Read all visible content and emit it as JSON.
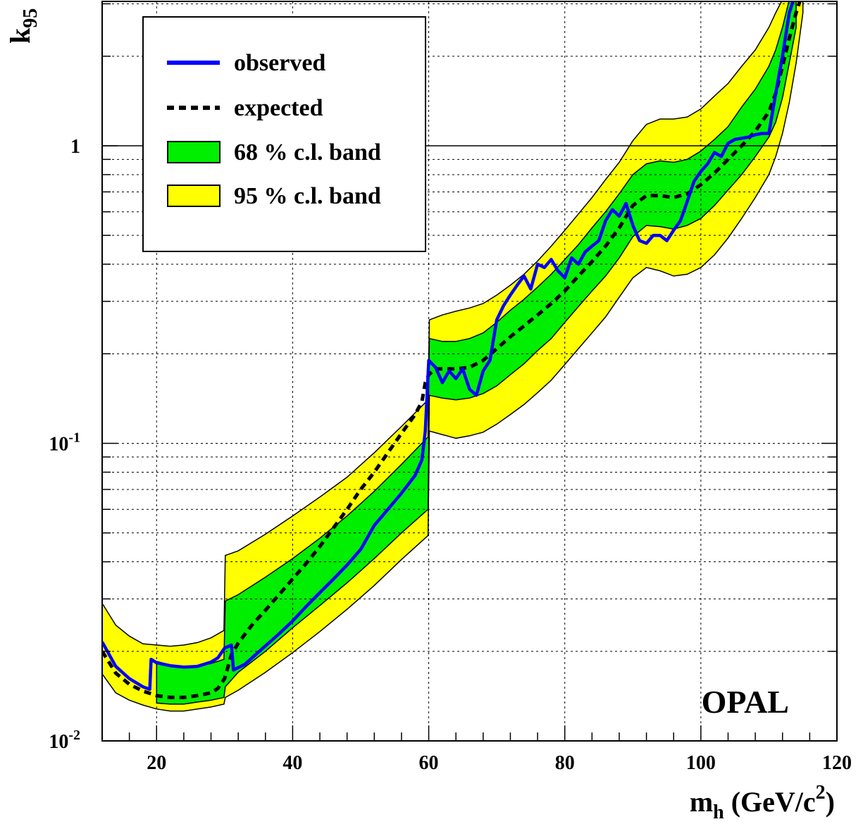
{
  "chart_data": {
    "type": "line",
    "xlabel": "m",
    "xlabel_sub": "h",
    "xlabel_units": " (GeV/c",
    "xlabel_units_sup": "2",
    "xlabel_units_close": ")",
    "ylabel": "k",
    "ylabel_sub": "95",
    "experiment_label": "OPAL",
    "x_scale": "linear",
    "y_scale": "log",
    "xlim": [
      12,
      120
    ],
    "ylim": [
      0.01,
      3.3
    ],
    "x_ticks": [
      20,
      40,
      60,
      80,
      100,
      120
    ],
    "x_tick_labels": [
      "20",
      "40",
      "60",
      "80",
      "100",
      "120"
    ],
    "y_tick_labels": [
      {
        "value": 0.01,
        "base": "10",
        "exp": "-2"
      },
      {
        "value": 0.1,
        "base": "10",
        "exp": "-1"
      },
      {
        "value": 1,
        "base": "1",
        "exp": ""
      }
    ],
    "grid": true,
    "reference_line": 1,
    "legend_position": "top-left",
    "legend": [
      {
        "label": "observed",
        "style": "line",
        "color": "#0000ff"
      },
      {
        "label": "expected",
        "style": "dashed",
        "color": "#000000"
      },
      {
        "label": "68 % c.l. band",
        "style": "box",
        "color": "#00ee00"
      },
      {
        "label": "95 % c.l. band",
        "style": "box",
        "color": "#ffff00"
      }
    ],
    "series": [
      {
        "name": "observed",
        "color": "#0000ff",
        "x": [
          12,
          14,
          16,
          18,
          19,
          19.2,
          20,
          22,
          24,
          26,
          28,
          29,
          30,
          31,
          31.3,
          33,
          35,
          38,
          40,
          42,
          44,
          46,
          48,
          50,
          52,
          54,
          56,
          58,
          59,
          59.5,
          60,
          61,
          62,
          63,
          64,
          65,
          66,
          67,
          68,
          69,
          70,
          71,
          72,
          73,
          74,
          75,
          76,
          77,
          78,
          79,
          80,
          81,
          82,
          83,
          84,
          85,
          86,
          87,
          88,
          89,
          90,
          91,
          92,
          93,
          94,
          95,
          96,
          97,
          98,
          99,
          100,
          101,
          102,
          103,
          104,
          105,
          106,
          107,
          108,
          109,
          110,
          111,
          112,
          113,
          114
        ],
        "y": [
          0.0215,
          0.0178,
          0.0162,
          0.0152,
          0.0149,
          0.0188,
          0.0183,
          0.0179,
          0.0177,
          0.0178,
          0.0184,
          0.019,
          0.0205,
          0.021,
          0.0173,
          0.0181,
          0.0199,
          0.0229,
          0.0253,
          0.0283,
          0.0315,
          0.035,
          0.039,
          0.044,
          0.053,
          0.06,
          0.068,
          0.078,
          0.088,
          0.11,
          0.19,
          0.18,
          0.16,
          0.175,
          0.165,
          0.178,
          0.152,
          0.145,
          0.175,
          0.19,
          0.26,
          0.29,
          0.315,
          0.34,
          0.365,
          0.33,
          0.4,
          0.39,
          0.415,
          0.38,
          0.36,
          0.42,
          0.4,
          0.44,
          0.46,
          0.48,
          0.56,
          0.61,
          0.58,
          0.64,
          0.54,
          0.48,
          0.47,
          0.5,
          0.5,
          0.48,
          0.52,
          0.56,
          0.65,
          0.76,
          0.82,
          0.87,
          0.95,
          0.92,
          1.02,
          1.05,
          1.06,
          1.07,
          1.09,
          1.1,
          1.1,
          1.5,
          2.0,
          2.8,
          3.3
        ]
      },
      {
        "name": "expected",
        "color": "#000000",
        "x": [
          12,
          14,
          16,
          18,
          20,
          22,
          24,
          26,
          28,
          29,
          30,
          31,
          32,
          34,
          36,
          38,
          40,
          42,
          44,
          46,
          48,
          50,
          52,
          54,
          56,
          58,
          59,
          59.5,
          60,
          61,
          62,
          64,
          66,
          68,
          70,
          72,
          74,
          76,
          78,
          80,
          82,
          84,
          86,
          88,
          90,
          92,
          94,
          96,
          98,
          100,
          102,
          104,
          106,
          108,
          110,
          111,
          112,
          113,
          114,
          115
        ],
        "y": [
          0.02,
          0.0169,
          0.0155,
          0.0147,
          0.0142,
          0.014,
          0.014,
          0.0142,
          0.0145,
          0.015,
          0.0162,
          0.0195,
          0.0213,
          0.0245,
          0.0275,
          0.031,
          0.035,
          0.0395,
          0.045,
          0.052,
          0.06,
          0.07,
          0.08,
          0.093,
          0.108,
          0.125,
          0.138,
          0.16,
          0.17,
          0.178,
          0.178,
          0.178,
          0.18,
          0.19,
          0.208,
          0.228,
          0.248,
          0.27,
          0.295,
          0.325,
          0.365,
          0.408,
          0.46,
          0.53,
          0.63,
          0.68,
          0.68,
          0.67,
          0.69,
          0.74,
          0.81,
          0.9,
          1.0,
          1.12,
          1.3,
          1.5,
          1.85,
          2.3,
          2.8,
          3.3
        ]
      }
    ],
    "bands": [
      {
        "name": "95 % c.l. band",
        "color": "#ffff00",
        "x": [
          12,
          14,
          16,
          18,
          20,
          22,
          24,
          26,
          28,
          29.9,
          30.1,
          32,
          36,
          40,
          44,
          48,
          52,
          56,
          59.9,
          60.1,
          62,
          64,
          66,
          68,
          70,
          72,
          74,
          76,
          78,
          80,
          82,
          84,
          86,
          88,
          90,
          92,
          94,
          96,
          98,
          100,
          102,
          104,
          106,
          108,
          110,
          111,
          112,
          113,
          114,
          115
        ],
        "lower": [
          0.0168,
          0.0145,
          0.0137,
          0.0132,
          0.0128,
          0.0126,
          0.0126,
          0.0128,
          0.013,
          0.0133,
          0.014,
          0.0148,
          0.017,
          0.0198,
          0.0233,
          0.0277,
          0.0333,
          0.0407,
          0.049,
          0.11,
          0.107,
          0.104,
          0.106,
          0.109,
          0.116,
          0.125,
          0.135,
          0.148,
          0.163,
          0.184,
          0.208,
          0.235,
          0.266,
          0.31,
          0.36,
          0.39,
          0.38,
          0.365,
          0.37,
          0.39,
          0.43,
          0.49,
          0.57,
          0.67,
          0.8,
          0.92,
          1.1,
          1.4,
          1.9,
          2.8
        ],
        "upper": [
          0.029,
          0.0245,
          0.0225,
          0.0212,
          0.021,
          0.0208,
          0.021,
          0.0214,
          0.0222,
          0.0235,
          0.042,
          0.0435,
          0.0495,
          0.057,
          0.066,
          0.077,
          0.093,
          0.114,
          0.14,
          0.26,
          0.27,
          0.278,
          0.285,
          0.295,
          0.315,
          0.34,
          0.37,
          0.41,
          0.46,
          0.52,
          0.59,
          0.67,
          0.77,
          0.88,
          1.04,
          1.18,
          1.23,
          1.23,
          1.25,
          1.33,
          1.47,
          1.62,
          1.85,
          2.1,
          2.5,
          2.8,
          3.1,
          3.3,
          3.3,
          3.3
        ]
      },
      {
        "name": "68 % c.l. band",
        "color": "#00ee00",
        "x": [
          20,
          22,
          24,
          26,
          28,
          29.9,
          30.1,
          32,
          36,
          40,
          44,
          48,
          52,
          56,
          59.9,
          60.1,
          62,
          64,
          66,
          68,
          70,
          72,
          74,
          76,
          78,
          80,
          82,
          84,
          86,
          88,
          90,
          92,
          94,
          96,
          98,
          100,
          102,
          104,
          106,
          108,
          110,
          111,
          112,
          113,
          114
        ],
        "lower": [
          0.0134,
          0.0133,
          0.0133,
          0.0135,
          0.0137,
          0.014,
          0.0152,
          0.017,
          0.02,
          0.024,
          0.0285,
          0.034,
          0.041,
          0.05,
          0.06,
          0.145,
          0.142,
          0.14,
          0.142,
          0.147,
          0.156,
          0.17,
          0.185,
          0.205,
          0.225,
          0.255,
          0.288,
          0.325,
          0.365,
          0.42,
          0.495,
          0.54,
          0.535,
          0.525,
          0.54,
          0.57,
          0.63,
          0.71,
          0.8,
          0.92,
          1.07,
          1.2,
          1.45,
          1.9,
          2.5
        ],
        "upper": [
          0.0185,
          0.018,
          0.0178,
          0.0179,
          0.0182,
          0.0188,
          0.0295,
          0.031,
          0.0355,
          0.041,
          0.048,
          0.057,
          0.069,
          0.085,
          0.105,
          0.225,
          0.22,
          0.22,
          0.225,
          0.235,
          0.255,
          0.28,
          0.305,
          0.335,
          0.37,
          0.415,
          0.465,
          0.53,
          0.6,
          0.69,
          0.8,
          0.87,
          0.89,
          0.88,
          0.9,
          0.96,
          1.05,
          1.16,
          1.35,
          1.55,
          1.85,
          2.1,
          2.5,
          3.1,
          3.3
        ]
      }
    ]
  }
}
